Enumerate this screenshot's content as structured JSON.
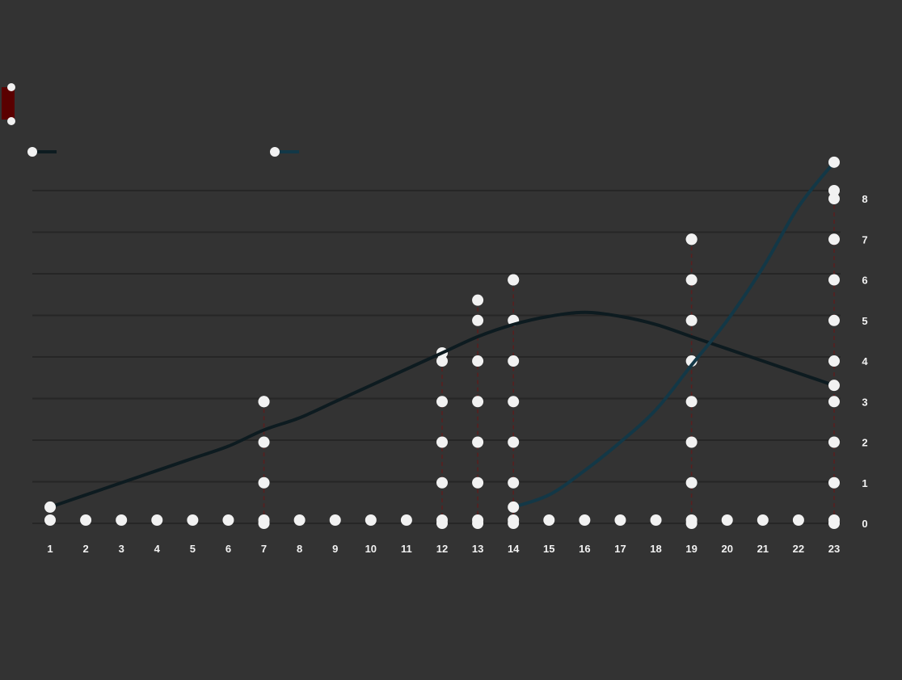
{
  "chart_data": {
    "type": "line",
    "title": "",
    "x_categories": [
      "1",
      "2",
      "3",
      "4",
      "5",
      "6",
      "7",
      "8",
      "9",
      "10",
      "11",
      "12",
      "13",
      "14",
      "15",
      "16",
      "17",
      "18",
      "19",
      "20",
      "21",
      "22",
      "23"
    ],
    "series": [
      {
        "values": [
          0.4,
          0.7,
          1.0,
          1.3,
          1.6,
          1.9,
          2.3,
          2.6,
          3.0,
          3.4,
          3.8,
          4.2,
          4.6,
          4.9,
          5.1,
          5.2,
          5.1,
          4.9,
          4.6,
          4.3,
          4.0,
          3.7,
          3.4
        ],
        "color": "#0d1b20"
      },
      {
        "values": [
          null,
          null,
          null,
          null,
          null,
          null,
          null,
          null,
          null,
          null,
          null,
          null,
          null,
          0.4,
          0.7,
          1.3,
          2.0,
          2.8,
          3.9,
          5.0,
          6.3,
          7.8,
          8.9
        ],
        "color": "#133847"
      }
    ],
    "y_right_ticks": [
      "0",
      "1",
      "2",
      "3",
      "4",
      "5",
      "6",
      "7",
      "8"
    ],
    "ylim": [
      0,
      8.2
    ],
    "gridlines": true,
    "annotation_markers": [
      {
        "index": 6,
        "top_value": 3.0
      },
      {
        "index": 11,
        "top_value": 4.2
      },
      {
        "index": 12,
        "top_value": 5.5
      },
      {
        "index": 13,
        "top_value": 6.0
      },
      {
        "index": 18,
        "top_value": 7.0
      },
      {
        "index": 22,
        "top_value": 8.2
      }
    ],
    "colors": {
      "background": "#333333",
      "gridline": "#262626",
      "marker_line": "#5a1e1e",
      "point": "#f2f2f2",
      "legend_swatch": "#5a0000"
    }
  }
}
